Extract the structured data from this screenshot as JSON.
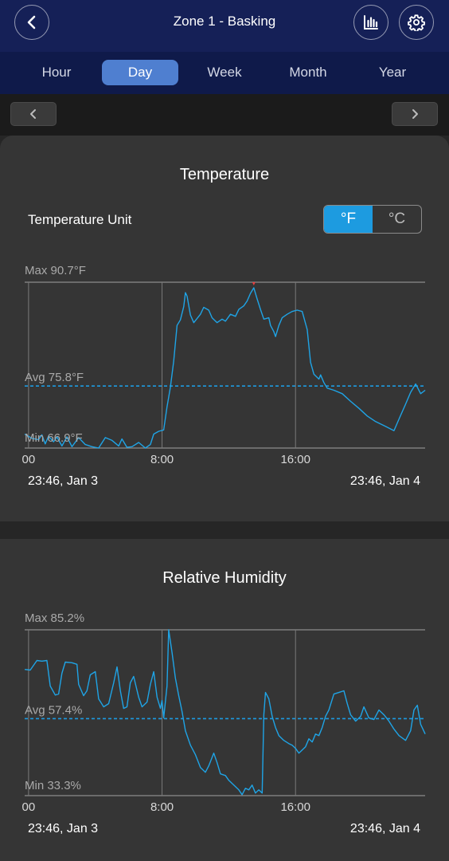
{
  "header": {
    "title": "Zone 1 - Basking"
  },
  "icons": {
    "back": "chevron-left-icon",
    "stats": "bar-chart-icon",
    "settings": "gear-icon",
    "prev": "chevron-left-icon",
    "next": "chevron-right-icon"
  },
  "tabs": [
    {
      "label": "Hour",
      "active": false
    },
    {
      "label": "Day",
      "active": true
    },
    {
      "label": "Week",
      "active": false
    },
    {
      "label": "Month",
      "active": false
    },
    {
      "label": "Year",
      "active": false
    }
  ],
  "temperature": {
    "title": "Temperature",
    "unit_label": "Temperature Unit",
    "unit_options": [
      "°F",
      "°C"
    ],
    "selected_unit": "°F",
    "range_start": "23:46,  Jan 3",
    "range_end": "23:46,  Jan 4"
  },
  "humidity": {
    "title": "Relative Humidity",
    "range_start": "23:46,  Jan 3",
    "range_end": "23:46,  Jan 4"
  },
  "colors": {
    "accent": "#1d9be0",
    "line": "#1fa4e6",
    "max_marker": "#e84040",
    "header": "#152057",
    "tab_active": "#4f7fd0"
  },
  "chart_data": [
    {
      "type": "line",
      "title": "Temperature",
      "unit": "°F",
      "max_label": "Max 90.7°F",
      "avg_label": "Avg 75.8°F",
      "min_label": "Min 66.9°F",
      "max": 90.7,
      "avg": 75.8,
      "min": 66.9,
      "ylim": [
        66.9,
        90.7
      ],
      "xlim": [
        -0.233,
        23.767
      ],
      "x_ticks": [
        "00",
        "8:00",
        "16:00"
      ],
      "x_tick_values": [
        0,
        8,
        16
      ],
      "points": [
        [
          -0.23,
          68.9
        ],
        [
          0.2,
          68.3
        ],
        [
          0.6,
          68.1
        ],
        [
          0.8,
          68.8
        ],
        [
          1.0,
          67.5
        ],
        [
          1.2,
          68.6
        ],
        [
          1.5,
          67.8
        ],
        [
          1.7,
          68.5
        ],
        [
          2.0,
          67.2
        ],
        [
          2.3,
          68.5
        ],
        [
          2.6,
          67.1
        ],
        [
          3.0,
          68.4
        ],
        [
          3.4,
          67.4
        ],
        [
          3.8,
          67.1
        ],
        [
          4.2,
          66.9
        ],
        [
          4.6,
          68.4
        ],
        [
          5.0,
          68.0
        ],
        [
          5.4,
          67.2
        ],
        [
          5.6,
          68.2
        ],
        [
          5.9,
          67.0
        ],
        [
          6.2,
          67.1
        ],
        [
          6.6,
          67.7
        ],
        [
          7.0,
          66.9
        ],
        [
          7.3,
          67.4
        ],
        [
          7.5,
          68.9
        ],
        [
          7.8,
          69.3
        ],
        [
          8.1,
          69.5
        ],
        [
          8.3,
          72.8
        ],
        [
          8.5,
          75.6
        ],
        [
          8.7,
          79.4
        ],
        [
          8.9,
          84.5
        ],
        [
          9.1,
          85.3
        ],
        [
          9.3,
          87.2
        ],
        [
          9.4,
          89.2
        ],
        [
          9.5,
          88.7
        ],
        [
          9.7,
          86.0
        ],
        [
          9.9,
          84.9
        ],
        [
          10.3,
          86.1
        ],
        [
          10.5,
          87.1
        ],
        [
          10.8,
          86.7
        ],
        [
          11.0,
          85.6
        ],
        [
          11.3,
          84.9
        ],
        [
          11.6,
          85.4
        ],
        [
          11.8,
          85.1
        ],
        [
          12.1,
          86.1
        ],
        [
          12.4,
          85.8
        ],
        [
          12.6,
          86.8
        ],
        [
          12.9,
          87.3
        ],
        [
          13.1,
          88.0
        ],
        [
          13.3,
          89.1
        ],
        [
          13.5,
          89.9
        ],
        [
          13.7,
          88.3
        ],
        [
          13.9,
          86.8
        ],
        [
          14.1,
          85.4
        ],
        [
          14.4,
          85.6
        ],
        [
          14.5,
          84.5
        ],
        [
          14.7,
          83.6
        ],
        [
          14.8,
          82.9
        ],
        [
          15.0,
          84.5
        ],
        [
          15.2,
          85.6
        ],
        [
          15.5,
          86.1
        ],
        [
          15.8,
          86.5
        ],
        [
          16.1,
          86.7
        ],
        [
          16.4,
          86.5
        ],
        [
          16.7,
          83.9
        ],
        [
          16.9,
          79.2
        ],
        [
          17.1,
          77.5
        ],
        [
          17.4,
          76.8
        ],
        [
          17.5,
          77.4
        ],
        [
          17.7,
          76.3
        ],
        [
          17.9,
          75.5
        ],
        [
          18.3,
          75.2
        ],
        [
          18.8,
          74.7
        ],
        [
          19.3,
          73.6
        ],
        [
          19.8,
          72.6
        ],
        [
          20.3,
          71.5
        ],
        [
          20.8,
          70.7
        ],
        [
          21.4,
          70.0
        ],
        [
          21.9,
          69.4
        ],
        [
          22.1,
          70.5
        ],
        [
          22.3,
          71.6
        ],
        [
          22.6,
          73.2
        ],
        [
          22.9,
          74.9
        ],
        [
          23.2,
          76.1
        ],
        [
          23.5,
          74.7
        ],
        [
          23.77,
          75.2
        ]
      ],
      "max_point": [
        13.5,
        90.7
      ]
    },
    {
      "type": "line",
      "title": "Relative Humidity",
      "unit": "%",
      "max_label": "Max 85.2%",
      "avg_label": "Avg 57.4%",
      "min_label": "Min 33.3%",
      "max": 85.2,
      "avg": 57.4,
      "min": 33.3,
      "ylim": [
        33.3,
        85.2
      ],
      "xlim": [
        -0.233,
        23.767
      ],
      "x_ticks": [
        "00",
        "8:00",
        "16:00"
      ],
      "x_tick_values": [
        0,
        8,
        16
      ],
      "points": [
        [
          -0.23,
          72.8
        ],
        [
          0.1,
          72.6
        ],
        [
          0.5,
          75.6
        ],
        [
          0.8,
          75.4
        ],
        [
          1.1,
          75.6
        ],
        [
          1.3,
          67.6
        ],
        [
          1.6,
          64.8
        ],
        [
          1.8,
          65.1
        ],
        [
          2.0,
          71.6
        ],
        [
          2.2,
          75.1
        ],
        [
          2.6,
          74.9
        ],
        [
          2.9,
          74.4
        ],
        [
          3.0,
          68.1
        ],
        [
          3.3,
          64.6
        ],
        [
          3.5,
          66.1
        ],
        [
          3.7,
          71.1
        ],
        [
          4.0,
          72.1
        ],
        [
          4.2,
          63.6
        ],
        [
          4.5,
          61.1
        ],
        [
          4.8,
          62.1
        ],
        [
          5.1,
          68.6
        ],
        [
          5.3,
          73.6
        ],
        [
          5.5,
          66.1
        ],
        [
          5.7,
          60.6
        ],
        [
          5.9,
          61.1
        ],
        [
          6.1,
          68.6
        ],
        [
          6.3,
          70.6
        ],
        [
          6.6,
          64.1
        ],
        [
          6.8,
          61.1
        ],
        [
          7.1,
          62.6
        ],
        [
          7.3,
          68.1
        ],
        [
          7.5,
          72.1
        ],
        [
          7.7,
          64.1
        ],
        [
          7.9,
          60.6
        ],
        [
          8.0,
          63.1
        ],
        [
          8.1,
          57.6
        ],
        [
          8.3,
          67.6
        ],
        [
          8.4,
          85.2
        ],
        [
          8.6,
          78.1
        ],
        [
          8.8,
          70.1
        ],
        [
          9.0,
          64.6
        ],
        [
          9.2,
          59.6
        ],
        [
          9.4,
          53.6
        ],
        [
          9.7,
          49.1
        ],
        [
          10.0,
          46.1
        ],
        [
          10.3,
          42.1
        ],
        [
          10.6,
          40.6
        ],
        [
          10.8,
          42.6
        ],
        [
          11.1,
          46.6
        ],
        [
          11.3,
          43.6
        ],
        [
          11.5,
          40.1
        ],
        [
          11.8,
          39.6
        ],
        [
          12.0,
          38.1
        ],
        [
          12.3,
          36.6
        ],
        [
          12.6,
          35.1
        ],
        [
          12.8,
          33.6
        ],
        [
          13.0,
          35.6
        ],
        [
          13.2,
          35.1
        ],
        [
          13.4,
          36.6
        ],
        [
          13.6,
          34.1
        ],
        [
          13.8,
          35.1
        ],
        [
          14.0,
          34.1
        ],
        [
          14.1,
          58.6
        ],
        [
          14.2,
          65.6
        ],
        [
          14.4,
          63.6
        ],
        [
          14.6,
          58.1
        ],
        [
          14.8,
          54.6
        ],
        [
          15.0,
          52.1
        ],
        [
          15.3,
          50.6
        ],
        [
          15.6,
          49.6
        ],
        [
          15.8,
          49.1
        ],
        [
          16.0,
          48.1
        ],
        [
          16.2,
          46.6
        ],
        [
          16.4,
          47.6
        ],
        [
          16.6,
          48.6
        ],
        [
          16.8,
          51.1
        ],
        [
          17.0,
          50.1
        ],
        [
          17.2,
          52.6
        ],
        [
          17.4,
          52.1
        ],
        [
          17.6,
          54.6
        ],
        [
          17.8,
          58.1
        ],
        [
          18.0,
          60.1
        ],
        [
          18.3,
          65.1
        ],
        [
          18.6,
          65.6
        ],
        [
          18.9,
          66.1
        ],
        [
          19.1,
          62.1
        ],
        [
          19.3,
          58.6
        ],
        [
          19.6,
          56.6
        ],
        [
          19.9,
          58.1
        ],
        [
          20.1,
          61.1
        ],
        [
          20.4,
          57.6
        ],
        [
          20.7,
          57.1
        ],
        [
          21.0,
          60.1
        ],
        [
          21.3,
          58.6
        ],
        [
          21.6,
          56.6
        ],
        [
          21.9,
          54.1
        ],
        [
          22.2,
          52.1
        ],
        [
          22.6,
          50.6
        ],
        [
          22.9,
          53.6
        ],
        [
          23.1,
          60.1
        ],
        [
          23.3,
          61.6
        ],
        [
          23.5,
          55.6
        ],
        [
          23.77,
          52.6
        ]
      ]
    }
  ]
}
